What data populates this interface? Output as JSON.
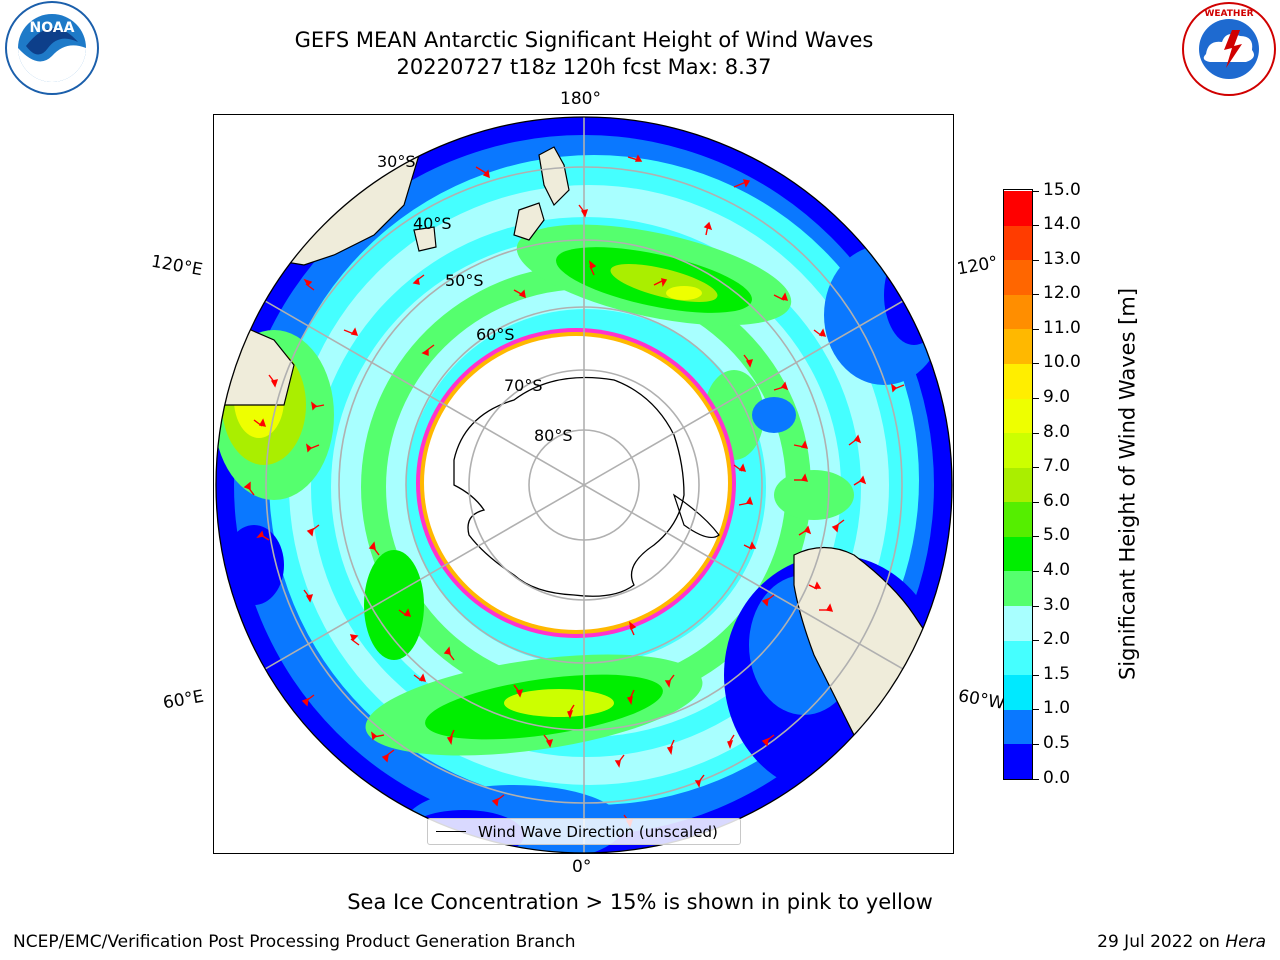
{
  "header": {
    "title_line1": "GEFS MEAN Antarctic Significant Height of Wind Waves",
    "title_line2": "20220727 t18z 120h fcst   Max: 8.37"
  },
  "logos": {
    "left": {
      "name": "NOAA",
      "ring_text": "NATIONAL OCEANIC AND ATMOSPHERIC ADMINISTRATION · U.S. DEPARTMENT OF COMMERCE"
    },
    "right": {
      "name": "National Weather Service",
      "ring_text": "NATIONAL WEATHER SERVICE"
    }
  },
  "map": {
    "projection": "south-polar-stereographic",
    "longitude_labels": {
      "top": "180°",
      "bottom": "0°",
      "left_upper": "120°E",
      "left_lower": "60°E",
      "right_upper": "120°",
      "right_lower": "60°W"
    },
    "latitude_labels": [
      "30°S",
      "40°S",
      "50°S",
      "60°S",
      "70°S",
      "80°S"
    ],
    "legend_label": "Wind Wave Direction (unscaled)",
    "arrow_color": "#ff0000",
    "land_color": "#efecda",
    "sea_ice_color": "#ff33cc"
  },
  "colorbar": {
    "title": "Significant Height of Wind Waves [m]",
    "ticks": [
      "0.0",
      "0.5",
      "1.0",
      "1.5",
      "2.0",
      "3.0",
      "4.0",
      "5.0",
      "6.0",
      "7.0",
      "8.0",
      "9.0",
      "10.0",
      "11.0",
      "12.0",
      "13.0",
      "14.0",
      "15.0"
    ],
    "colors": [
      "#0000ff",
      "#0a78ff",
      "#00e9ff",
      "#45ffff",
      "#a8ffff",
      "#55ff6e",
      "#00ee00",
      "#55ee00",
      "#aaee00",
      "#ccff00",
      "#eeff00",
      "#ffee00",
      "#ffb800",
      "#ff8e00",
      "#ff6600",
      "#ff3c00",
      "#ff0000"
    ]
  },
  "footnote": "Sea Ice Concentration > 15% is shown in pink to yellow",
  "credits": {
    "left": "NCEP/EMC/Verification Post Processing Product Generation Branch",
    "right_date": "29 Jul 2022 on",
    "right_machine": "Hera"
  }
}
